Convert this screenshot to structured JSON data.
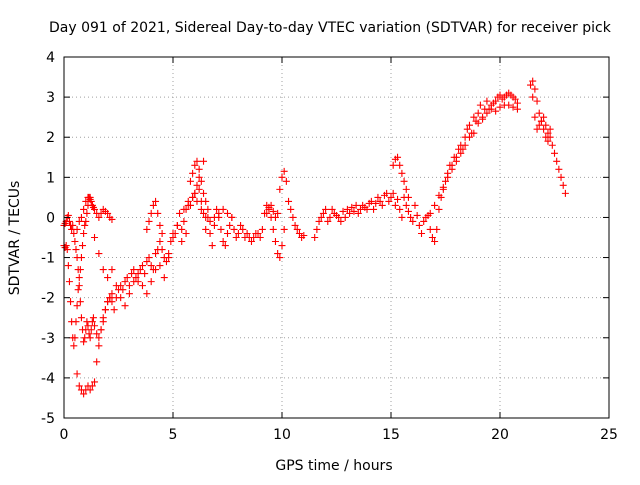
{
  "chart_data": {
    "type": "scatter",
    "title": "Day 091 of 2021, Sidereal Day-to-day VTEC variation (SDTVAR) for receiver pick",
    "xlabel": "GPS time / hours",
    "ylabel": "SDTVAR / TECUs",
    "xlim": [
      0,
      25
    ],
    "ylim": [
      -5,
      4
    ],
    "xticks": [
      0,
      5,
      10,
      15,
      20,
      25
    ],
    "yticks": [
      -5,
      -4,
      -3,
      -2,
      -1,
      0,
      1,
      2,
      3,
      4
    ],
    "grid": true,
    "marker": "+",
    "series_color": "#ff0000",
    "series": [
      {
        "name": "SDTVAR",
        "x": [
          0.0,
          0.05,
          0.1,
          0.15,
          0.2,
          0.25,
          0.3,
          0.35,
          0.4,
          0.45,
          0.5,
          0.55,
          0.6,
          0.65,
          0.7,
          0.75,
          0.8,
          0.85,
          0.9,
          0.95,
          1.0,
          1.05,
          1.1,
          1.15,
          1.2,
          1.25,
          1.3,
          1.35,
          0.0,
          0.05,
          0.1,
          0.15,
          0.2,
          0.25,
          0.3,
          0.35,
          0.4,
          0.45,
          0.5,
          0.55,
          0.6,
          0.65,
          0.7,
          0.75,
          0.8,
          0.85,
          0.9,
          0.95,
          1.0,
          1.05,
          1.1,
          1.15,
          1.2,
          1.25,
          1.3,
          1.35,
          1.4,
          1.5,
          1.6,
          1.7,
          1.8,
          1.9,
          2.0,
          2.1,
          2.2,
          0.6,
          0.7,
          0.8,
          0.9,
          1.0,
          1.1,
          1.2,
          1.3,
          1.4,
          1.5,
          1.6,
          1.7,
          1.8,
          1.9,
          2.0,
          2.1,
          2.2,
          0.6,
          0.7,
          0.8,
          0.9,
          1.0,
          1.1,
          1.2,
          1.3,
          1.4,
          1.5,
          1.6,
          1.7,
          1.8,
          1.9,
          2.0,
          2.1,
          2.2,
          2.3,
          2.4,
          2.5,
          2.6,
          2.7,
          2.8,
          2.9,
          3.0,
          3.1,
          3.2,
          3.3,
          3.4,
          3.5,
          3.6,
          3.7,
          3.8,
          3.9,
          4.0,
          4.1,
          4.2,
          4.3,
          4.4,
          4.5,
          1.4,
          1.6,
          1.8,
          2.0,
          2.2,
          2.4,
          2.6,
          2.8,
          3.0,
          3.2,
          3.4,
          3.6,
          3.8,
          4.0,
          4.2,
          4.4,
          4.6,
          4.8,
          5.0,
          5.2,
          5.4,
          5.6,
          5.8,
          6.0,
          6.2,
          6.4,
          3.8,
          3.9,
          4.0,
          4.1,
          4.2,
          4.3,
          4.4,
          4.5,
          4.6,
          4.7,
          4.8,
          4.9,
          5.0,
          5.1,
          5.2,
          5.3,
          5.4,
          5.5,
          5.6,
          5.7,
          5.8,
          5.9,
          6.0,
          6.1,
          6.2,
          6.3,
          6.4,
          6.5,
          6.6,
          6.7,
          6.8,
          6.9,
          7.0,
          7.1,
          7.2,
          7.3,
          7.4,
          7.5,
          7.6,
          7.7,
          7.8,
          7.9,
          8.0,
          8.1,
          8.2,
          8.3,
          8.4,
          8.5,
          8.6,
          8.7,
          8.8,
          8.9,
          9.0,
          9.1,
          9.2,
          9.3,
          9.4,
          9.5,
          9.6,
          9.7,
          9.8,
          9.9,
          10.0,
          10.1,
          5.8,
          5.9,
          6.0,
          6.1,
          6.2,
          6.3,
          6.4,
          6.5,
          6.6,
          5.5,
          5.7,
          5.9,
          6.1,
          6.3,
          6.5,
          6.7,
          6.9,
          7.1,
          7.3,
          7.5,
          7.7,
          9.3,
          9.4,
          9.5,
          9.6,
          9.7,
          9.8,
          9.9,
          10.0,
          10.1,
          10.2,
          10.3,
          10.4,
          10.5,
          10.6,
          10.7,
          10.8,
          10.9,
          11.0,
          11.5,
          11.6,
          11.7,
          11.8,
          11.9,
          12.0,
          12.1,
          12.2,
          12.3,
          12.4,
          12.5,
          12.6,
          12.7,
          12.8,
          12.9,
          13.0,
          13.1,
          13.2,
          13.3,
          13.4,
          13.5,
          13.6,
          13.7,
          13.8,
          13.9,
          14.0,
          14.1,
          14.2,
          14.3,
          14.4,
          14.5,
          14.6,
          14.7,
          14.8,
          14.9,
          15.0,
          15.1,
          15.2,
          15.3,
          15.4,
          15.5,
          15.6,
          15.7,
          15.8,
          15.9,
          16.0,
          16.1,
          16.2,
          16.3,
          16.4,
          16.5,
          16.6,
          16.7,
          16.8,
          15.1,
          15.2,
          15.3,
          15.4,
          15.5,
          15.6,
          15.7,
          15.8,
          16.8,
          16.9,
          17.0,
          17.1,
          17.2,
          17.3,
          17.4,
          17.5,
          17.6,
          17.7,
          17.8,
          17.9,
          18.0,
          18.1,
          18.2,
          18.3,
          18.4,
          18.5,
          18.6,
          18.7,
          18.8,
          18.9,
          19.0,
          19.1,
          19.2,
          19.3,
          19.4,
          19.5,
          19.6,
          19.7,
          19.8,
          19.9,
          20.0,
          20.1,
          20.2,
          20.3,
          20.4,
          20.5,
          20.6,
          20.7,
          20.8,
          17.0,
          17.2,
          17.4,
          17.6,
          17.8,
          18.0,
          18.2,
          18.4,
          18.6,
          18.8,
          19.0,
          19.2,
          19.4,
          19.6,
          19.8,
          20.0,
          20.2,
          20.4,
          20.6,
          20.8,
          21.5,
          21.6,
          21.7,
          21.8,
          21.9,
          22.0,
          22.1,
          22.2,
          22.3,
          22.4,
          22.5,
          22.6,
          22.7,
          22.8,
          22.9,
          23.0,
          21.4,
          21.5,
          21.6,
          21.7,
          21.8,
          21.9,
          22.0,
          22.1,
          22.2,
          22.3
        ],
        "y": [
          -0.7,
          -0.75,
          -0.7,
          -0.8,
          -1.2,
          -1.6,
          -2.1,
          -2.6,
          -3.0,
          -3.2,
          -3.0,
          -2.6,
          -2.2,
          -1.8,
          -1.5,
          -1.3,
          -1.0,
          -0.7,
          -0.4,
          -0.2,
          -0.1,
          0.1,
          0.3,
          0.5,
          0.5,
          0.4,
          0.3,
          0.25,
          -0.2,
          -0.15,
          -0.1,
          0.0,
          0.05,
          -0.1,
          -0.2,
          -0.3,
          -0.2,
          -0.4,
          -0.6,
          -0.8,
          -1.0,
          -1.3,
          -1.7,
          -2.1,
          -2.5,
          -2.8,
          -3.1,
          -3.0,
          -2.8,
          -2.6,
          -2.7,
          -2.9,
          -3.0,
          -2.8,
          -2.6,
          -2.5,
          -2.7,
          -2.9,
          -3.0,
          -2.8,
          -2.6,
          -2.3,
          -2.1,
          -2.0,
          -1.9,
          -0.3,
          -0.1,
          0.0,
          0.2,
          0.4,
          0.5,
          0.45,
          0.3,
          0.2,
          0.1,
          0.0,
          0.1,
          0.2,
          0.15,
          0.1,
          0.0,
          -0.05,
          -3.9,
          -4.2,
          -4.3,
          -4.4,
          -4.3,
          -4.2,
          -4.3,
          -4.2,
          -4.1,
          -3.6,
          -3.2,
          -2.8,
          -2.5,
          -2.3,
          -2.1,
          -2.0,
          -2.1,
          -2.3,
          -2.0,
          -1.8,
          -1.7,
          -1.8,
          -1.6,
          -1.5,
          -1.7,
          -1.4,
          -1.3,
          -1.5,
          -1.6,
          -1.3,
          -1.2,
          -1.4,
          -1.1,
          -1.0,
          -1.2,
          -1.3,
          -0.9,
          -0.8,
          -0.6,
          -0.4,
          -0.5,
          -0.9,
          -1.3,
          -1.5,
          -1.3,
          -1.7,
          -2.0,
          -2.2,
          -1.9,
          -1.6,
          -1.4,
          -1.7,
          -1.9,
          -1.6,
          -1.3,
          -1.2,
          -1.5,
          -1.0,
          -0.4,
          -0.2,
          -0.6,
          -0.4,
          0.3,
          0.6,
          1.0,
          1.4,
          -0.3,
          -0.1,
          0.1,
          0.3,
          0.4,
          0.1,
          -0.2,
          -0.8,
          -1.0,
          -1.1,
          -0.9,
          -0.6,
          -0.5,
          -0.4,
          -0.2,
          0.1,
          -0.3,
          -0.1,
          0.2,
          0.4,
          0.3,
          0.5,
          0.6,
          0.8,
          0.7,
          0.4,
          0.1,
          -0.3,
          0.0,
          -0.4,
          -0.7,
          -0.2,
          0.2,
          0.0,
          -0.3,
          -0.6,
          -0.7,
          -0.4,
          -0.2,
          0.0,
          -0.3,
          -0.5,
          -0.4,
          -0.2,
          -0.3,
          -0.5,
          -0.4,
          -0.5,
          -0.6,
          -0.5,
          -0.4,
          -0.4,
          -0.5,
          -0.3,
          0.1,
          0.3,
          0.2,
          0.0,
          -0.3,
          -0.6,
          -0.9,
          -1.0,
          -0.7,
          -0.3,
          0.9,
          1.1,
          1.3,
          1.4,
          1.2,
          0.9,
          0.6,
          0.4,
          0.2,
          0.2,
          0.3,
          0.5,
          0.4,
          0.2,
          0.0,
          -0.1,
          0.0,
          0.1,
          0.2,
          0.1,
          0.0,
          0.1,
          0.25,
          0.3,
          0.15,
          0.0,
          0.1,
          0.7,
          1.0,
          1.15,
          0.9,
          0.4,
          0.2,
          0.0,
          -0.2,
          -0.3,
          -0.4,
          -0.5,
          -0.45,
          -0.5,
          -0.3,
          -0.1,
          0.0,
          0.1,
          0.2,
          -0.1,
          0.0,
          0.2,
          0.1,
          0.05,
          0.0,
          -0.1,
          0.15,
          0.0,
          0.2,
          0.1,
          0.25,
          0.15,
          0.3,
          0.1,
          0.2,
          0.3,
          0.25,
          0.2,
          0.35,
          0.4,
          0.2,
          0.35,
          0.5,
          0.4,
          0.3,
          0.55,
          0.6,
          0.4,
          0.5,
          0.6,
          0.3,
          0.45,
          0.2,
          0.0,
          0.5,
          0.3,
          0.15,
          0.0,
          -0.1,
          0.3,
          0.05,
          -0.2,
          -0.4,
          -0.1,
          0.0,
          0.05,
          0.1,
          1.3,
          1.45,
          1.5,
          1.3,
          1.1,
          0.9,
          0.7,
          0.5,
          -0.3,
          -0.5,
          -0.6,
          -0.3,
          0.2,
          0.5,
          0.7,
          0.9,
          1.1,
          1.3,
          1.3,
          1.5,
          1.5,
          1.7,
          1.8,
          1.7,
          2.0,
          2.2,
          2.3,
          2.1,
          2.5,
          2.4,
          2.6,
          2.8,
          2.5,
          2.7,
          2.9,
          2.7,
          2.8,
          2.85,
          2.9,
          3.0,
          3.05,
          2.95,
          3.0,
          3.05,
          3.1,
          3.05,
          3.0,
          2.95,
          2.85,
          0.3,
          0.55,
          0.75,
          1.0,
          1.2,
          1.4,
          1.6,
          1.8,
          2.0,
          2.1,
          2.35,
          2.45,
          2.6,
          2.7,
          2.65,
          2.75,
          2.8,
          2.8,
          2.75,
          2.7,
          3.4,
          3.2,
          2.9,
          2.6,
          2.4,
          2.5,
          2.3,
          2.1,
          2.0,
          1.8,
          1.6,
          1.4,
          1.2,
          1.0,
          0.8,
          0.6,
          3.3,
          3.0,
          2.5,
          2.2,
          2.3,
          2.4,
          2.2,
          2.0,
          1.9,
          2.2
        ]
      }
    ]
  }
}
